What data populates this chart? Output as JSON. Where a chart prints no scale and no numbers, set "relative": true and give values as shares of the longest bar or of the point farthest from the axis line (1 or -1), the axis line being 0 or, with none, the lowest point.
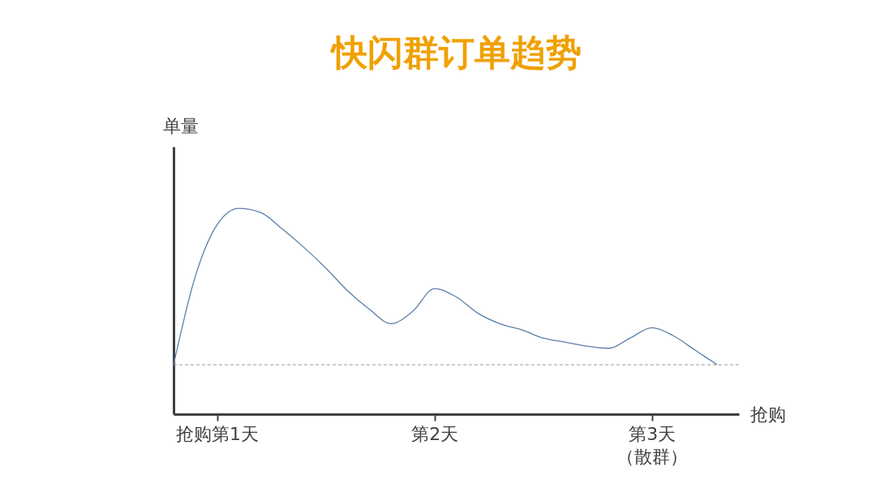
{
  "chart_data": {
    "type": "line",
    "title": "快闪群订单趋势",
    "xlabel": "抢购",
    "ylabel": "单量",
    "relative": true,
    "categories": [
      null,
      null,
      "抢购第1天",
      null,
      null,
      null,
      null,
      null,
      null,
      null,
      null,
      null,
      "第2天",
      null,
      null,
      null,
      null,
      null,
      null,
      null,
      null,
      null,
      "第3天（散群）",
      null,
      null,
      null
    ],
    "series": [
      {
        "color": "#5b7fa6",
        "values": [
          0.24,
          0.67,
          0.92,
          1.0,
          0.98,
          0.9,
          0.81,
          0.71,
          0.6,
          0.51,
          0.44,
          0.5,
          0.61,
          0.57,
          0.49,
          0.44,
          0.41,
          0.37,
          0.35,
          0.33,
          0.32,
          0.37,
          0.42,
          0.38,
          0.31,
          0.24
        ]
      }
    ],
    "ref_lines": [
      {
        "axis": "y",
        "value": 0.24,
        "color": "#999999",
        "line_style": "dashed"
      }
    ],
    "grid": false,
    "legend": false,
    "marker": "none",
    "line_style": "solid"
  }
}
